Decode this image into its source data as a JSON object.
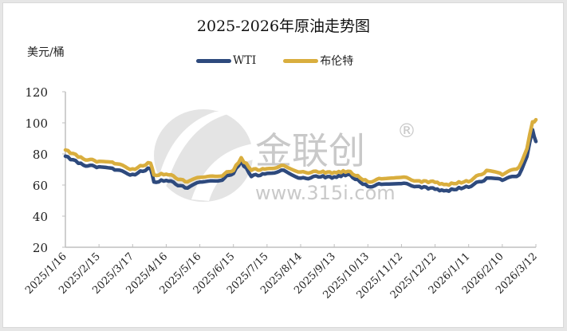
{
  "chart_data": {
    "type": "line",
    "title": "2025-2026年原油走势图",
    "xlabel": "",
    "ylabel": "美元/桶",
    "ylim": [
      20,
      120
    ],
    "yticks": [
      20,
      40,
      60,
      80,
      100,
      120
    ],
    "grid": false,
    "legend_position": "top",
    "x_tick_labels": [
      "2025/1/16",
      "2025/2/15",
      "2025/3/17",
      "2025/4/16",
      "2025/5/16",
      "2025/6/15",
      "2025/7/15",
      "2025/8/14",
      "2025/9/13",
      "2025/10/13",
      "2025/11/12",
      "2025/12/12",
      "2026/1/11",
      "2026/2/10",
      "2026/3/12"
    ],
    "x": [
      "2025/1/16",
      "2025/2/1",
      "2025/2/15",
      "2025/3/1",
      "2025/3/17",
      "2025/4/2",
      "2025/4/5",
      "2025/4/16",
      "2025/5/5",
      "2025/5/16",
      "2025/6/1",
      "2025/6/15",
      "2025/6/22",
      "2025/7/1",
      "2025/7/15",
      "2025/7/30",
      "2025/8/14",
      "2025/8/30",
      "2025/9/13",
      "2025/9/25",
      "2025/10/13",
      "2025/10/25",
      "2025/11/12",
      "2025/11/28",
      "2025/12/12",
      "2025/12/20",
      "2026/1/11",
      "2026/1/27",
      "2026/2/10",
      "2026/2/25",
      "2026/3/4",
      "2026/3/9",
      "2026/3/12"
    ],
    "series": [
      {
        "name": "WTI",
        "color": "#2e4a7d",
        "values": [
          78.5,
          73,
          71.5,
          70,
          66.5,
          71,
          61.5,
          63.5,
          57.5,
          62.5,
          62,
          68,
          75,
          66,
          67,
          70,
          64,
          65.5,
          65,
          67,
          59,
          60.5,
          61,
          59,
          57.5,
          56,
          59,
          64,
          63.5,
          66,
          79,
          95,
          88
        ]
      },
      {
        "name": "布伦特",
        "color": "#d9ae3e",
        "values": [
          82.5,
          77,
          75,
          74,
          70,
          74.5,
          66,
          67.5,
          61.5,
          65.5,
          65,
          70,
          77,
          70,
          70,
          73,
          68,
          68.5,
          68,
          69,
          62,
          64,
          65,
          62.5,
          62,
          60,
          62.5,
          69,
          67,
          71,
          84,
          100,
          102
        ]
      }
    ]
  },
  "header": {
    "title": "2025-2026年原油走势图",
    "unit": "美元/桶"
  },
  "legend": [
    {
      "label": "WTI",
      "color": "#2e4a7d"
    },
    {
      "label": "布伦特",
      "color": "#d9ae3e"
    }
  ],
  "watermark": {
    "brand": "金联创",
    "registered": "®",
    "url": "www.315i.com"
  }
}
